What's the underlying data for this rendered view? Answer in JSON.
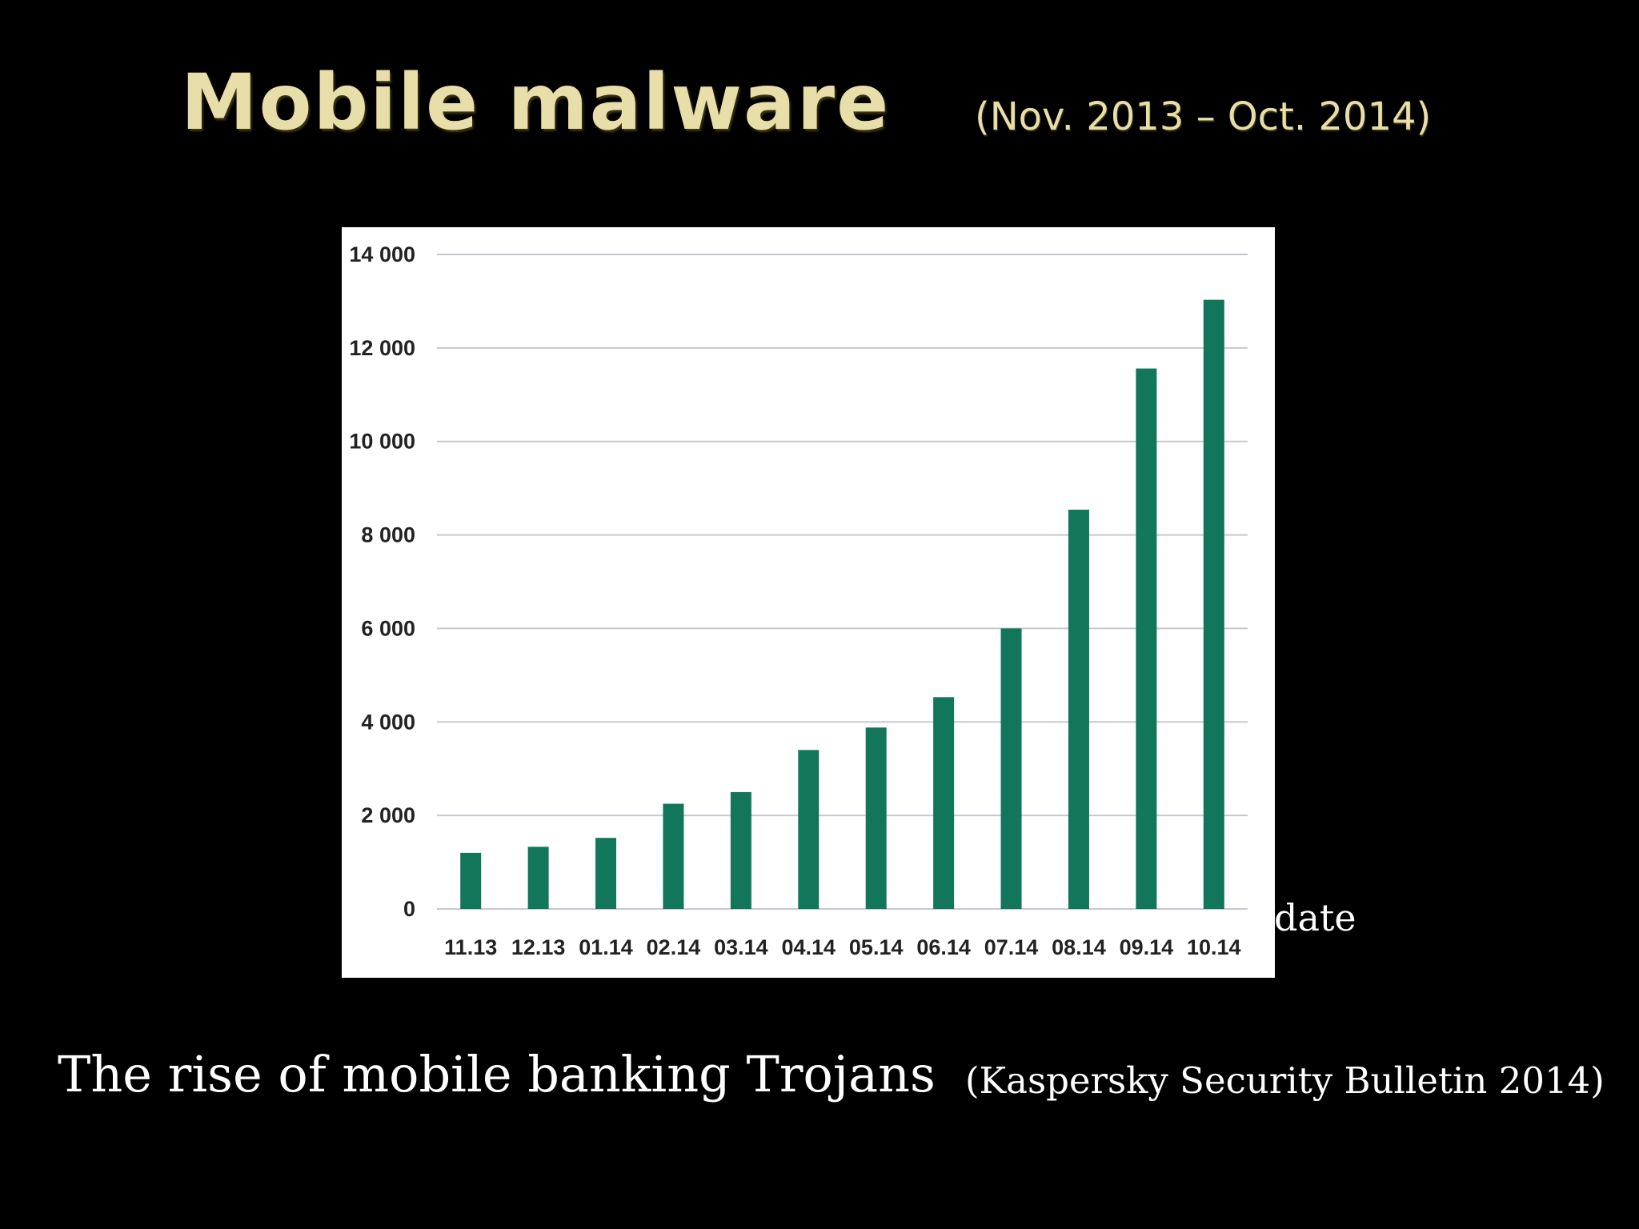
{
  "slide": {
    "title": "Mobile malware",
    "subtitle": "(Nov. 2013 – Oct. 2014)",
    "caption": "The rise of mobile banking Trojans",
    "source": "(Kaspersky Security Bulletin 2014)",
    "fragment": "date"
  },
  "colors": {
    "background": "#000000",
    "title": "#e7deaa",
    "bar": "#12765a",
    "grid": "#c8c8d0",
    "panel": "#ffffff"
  },
  "chart_data": {
    "type": "bar",
    "title": "",
    "xlabel": "",
    "ylabel": "",
    "categories": [
      "11.13",
      "12.13",
      "01.14",
      "02.14",
      "03.14",
      "04.14",
      "05.14",
      "06.14",
      "07.14",
      "08.14",
      "09.14",
      "10.14"
    ],
    "values": [
      1200,
      1330,
      1520,
      2250,
      2500,
      3400,
      3880,
      4530,
      6000,
      8540,
      11560,
      13030
    ],
    "yticks": [
      "0",
      "2 000",
      "4 000",
      "6 000",
      "8 000",
      "10 000",
      "12 000",
      "14 000"
    ],
    "ylim": [
      0,
      14000
    ],
    "grid": true,
    "legend": false
  }
}
